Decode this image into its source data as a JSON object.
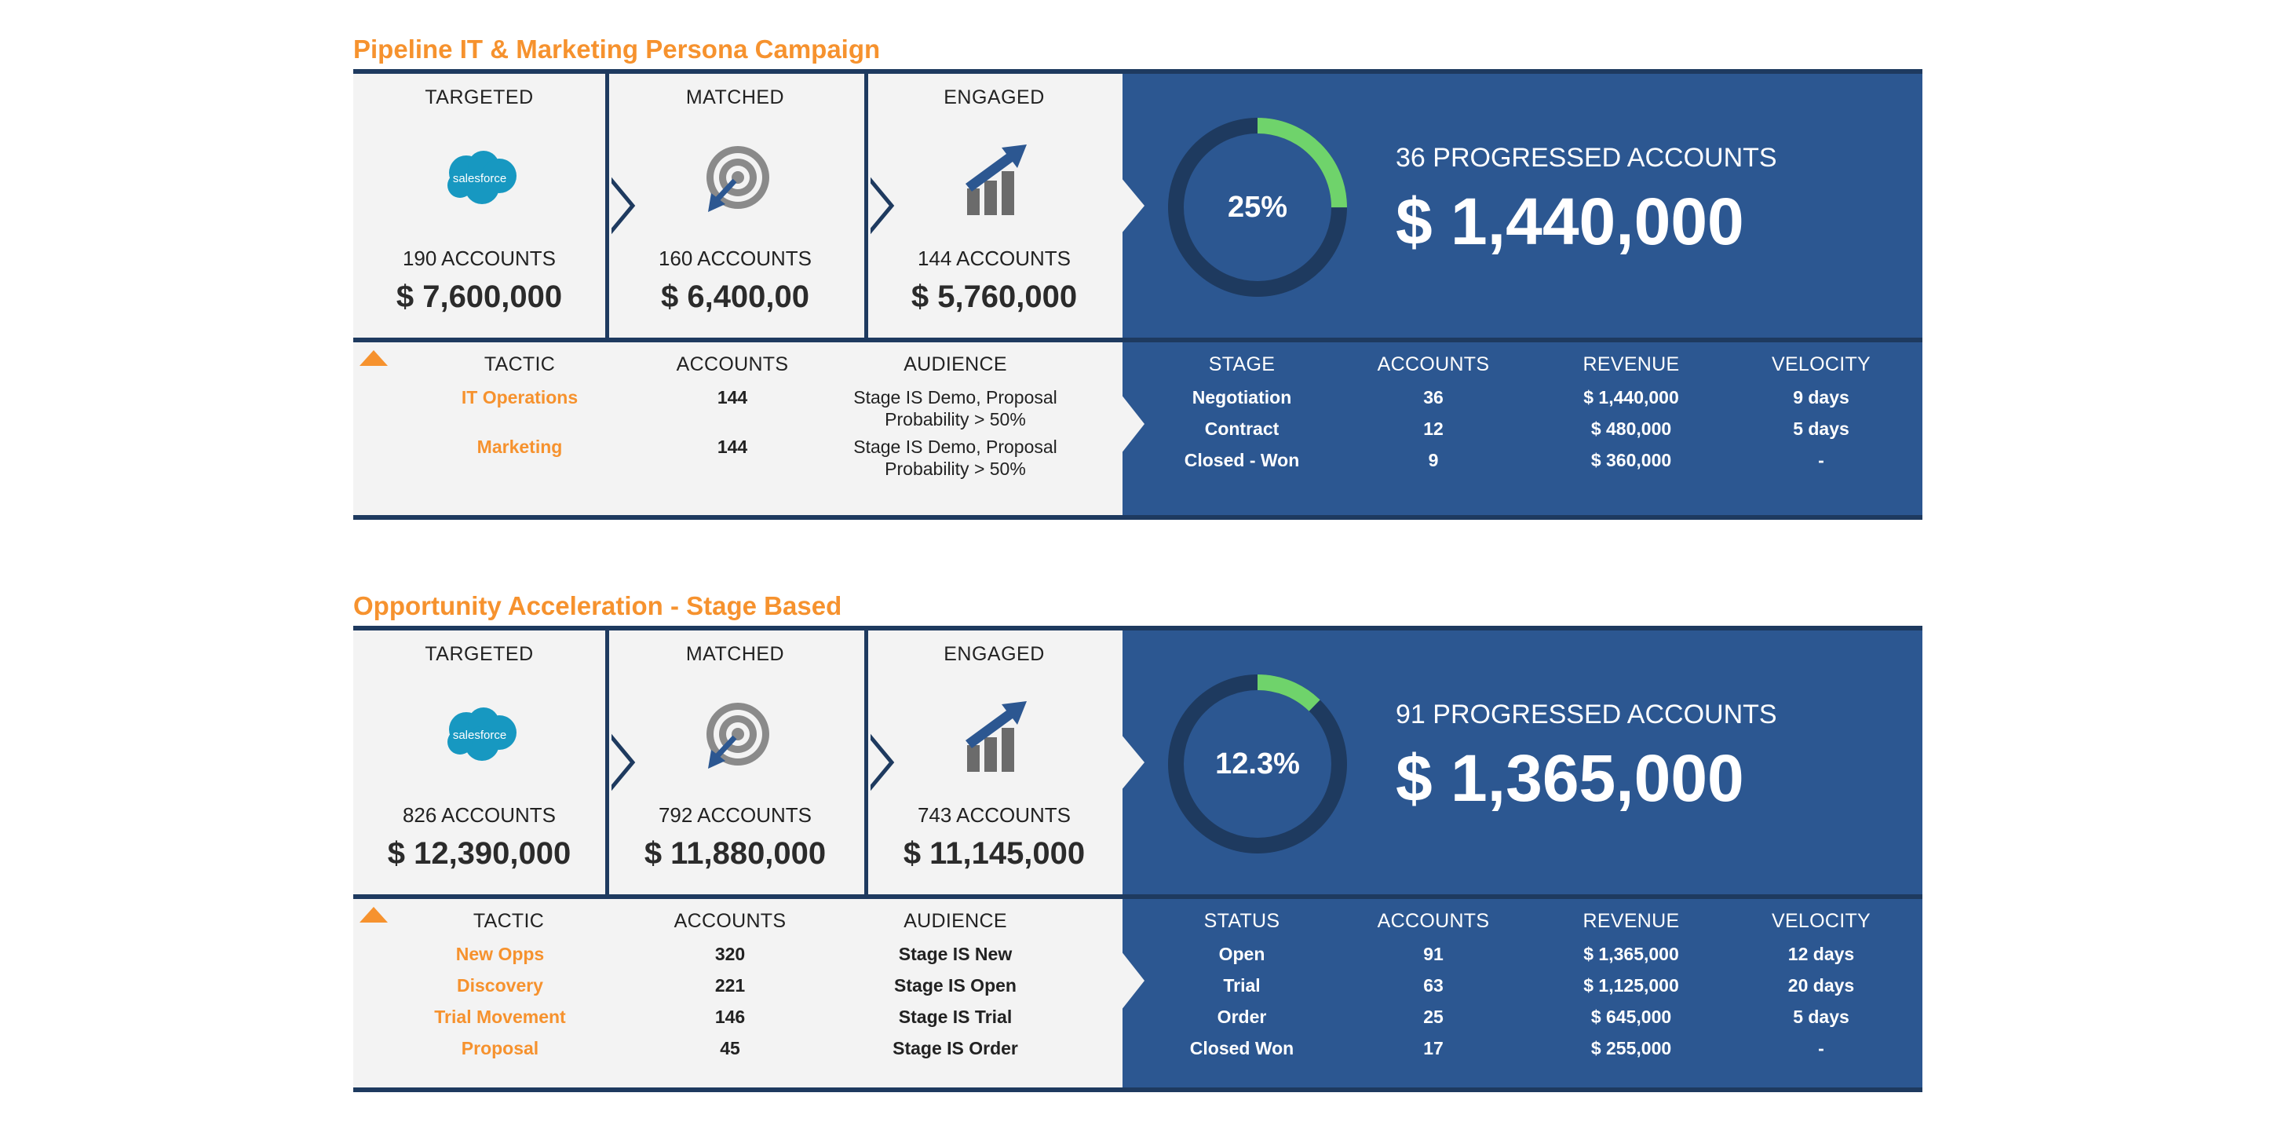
{
  "campaigns": [
    {
      "title": "Pipeline IT & Marketing Persona Campaign",
      "funnel": [
        {
          "label": "TARGETED",
          "icon": "salesforce-logo-icon",
          "logo_text": "salesforce",
          "accounts": "190 ACCOUNTS",
          "revenue": "$ 7,600,000"
        },
        {
          "label": "MATCHED",
          "icon": "target-icon",
          "accounts": "160 ACCOUNTS",
          "revenue": "$ 6,400,00"
        },
        {
          "label": "ENGAGED",
          "icon": "growth-chart-icon",
          "accounts": "144 ACCOUNTS",
          "revenue": "$ 5,760,000"
        }
      ],
      "progress": {
        "percent": "25%",
        "fraction": 0.25,
        "label": "36 PROGRESSED ACCOUNTS",
        "revenue": "$ 1,440,000"
      },
      "tactics": {
        "headers": {
          "tactic": "TACTIC",
          "accounts": "ACCOUNTS",
          "audience": "AUDIENCE"
        },
        "rows": [
          {
            "tactic": "IT Operations",
            "accounts": "144",
            "audience": [
              "Stage IS Demo, Proposal",
              "Probability > 50%"
            ]
          },
          {
            "tactic": "Marketing",
            "accounts": "144",
            "audience": [
              "Stage IS Demo, Proposal",
              "Probability > 50%"
            ]
          }
        ]
      },
      "stages": {
        "headers": {
          "stage": "STAGE",
          "accounts": "ACCOUNTS",
          "revenue": "REVENUE",
          "velocity": "VELOCITY"
        },
        "rows": [
          {
            "stage": "Negotiation",
            "accounts": "36",
            "revenue": "$ 1,440,000",
            "velocity": "9 days"
          },
          {
            "stage": "Contract",
            "accounts": "12",
            "revenue": "$ 480,000",
            "velocity": "5 days"
          },
          {
            "stage": "Closed - Won",
            "accounts": "9",
            "revenue": "$ 360,000",
            "velocity": "-"
          }
        ]
      }
    },
    {
      "title": "Opportunity Acceleration - Stage Based",
      "funnel": [
        {
          "label": "TARGETED",
          "icon": "salesforce-logo-icon",
          "logo_text": "salesforce",
          "accounts": "826 ACCOUNTS",
          "revenue": "$ 12,390,000"
        },
        {
          "label": "MATCHED",
          "icon": "target-icon",
          "accounts": "792 ACCOUNTS",
          "revenue": "$ 11,880,000"
        },
        {
          "label": "ENGAGED",
          "icon": "growth-chart-icon",
          "accounts": "743 ACCOUNTS",
          "revenue": "$ 11,145,000"
        }
      ],
      "progress": {
        "percent": "12.3%",
        "fraction": 0.123,
        "label": "91 PROGRESSED ACCOUNTS",
        "revenue": "$ 1,365,000"
      },
      "tactics": {
        "headers": {
          "tactic": "TACTIC",
          "accounts": "ACCOUNTS",
          "audience": "AUDIENCE"
        },
        "rows": [
          {
            "tactic": "New Opps",
            "accounts": "320",
            "audience": [
              "Stage IS New"
            ]
          },
          {
            "tactic": "Discovery",
            "accounts": "221",
            "audience": [
              "Stage IS Open"
            ]
          },
          {
            "tactic": "Trial Movement",
            "accounts": "146",
            "audience": [
              "Stage IS Trial"
            ]
          },
          {
            "tactic": "Proposal",
            "accounts": "45",
            "audience": [
              "Stage IS Order"
            ]
          }
        ]
      },
      "stages": {
        "headers": {
          "stage": "STATUS",
          "accounts": "ACCOUNTS",
          "revenue": "REVENUE",
          "velocity": "VELOCITY"
        },
        "rows": [
          {
            "stage": "Open",
            "accounts": "91",
            "revenue": "$ 1,365,000",
            "velocity": "12 days"
          },
          {
            "stage": "Trial",
            "accounts": "63",
            "revenue": "$ 1,125,000",
            "velocity": "20 days"
          },
          {
            "stage": "Order",
            "accounts": "25",
            "revenue": "$ 645,000",
            "velocity": "5 days"
          },
          {
            "stage": "Closed Won",
            "accounts": "17",
            "revenue": "$ 255,000",
            "velocity": "-"
          }
        ]
      }
    }
  ],
  "colors": {
    "orange": "#f6922e",
    "blue": "#2c5791",
    "navy": "#1e3a5f",
    "green": "#6fd36b",
    "panel": "#f3f3f3",
    "salesforce": "#1798c1"
  }
}
